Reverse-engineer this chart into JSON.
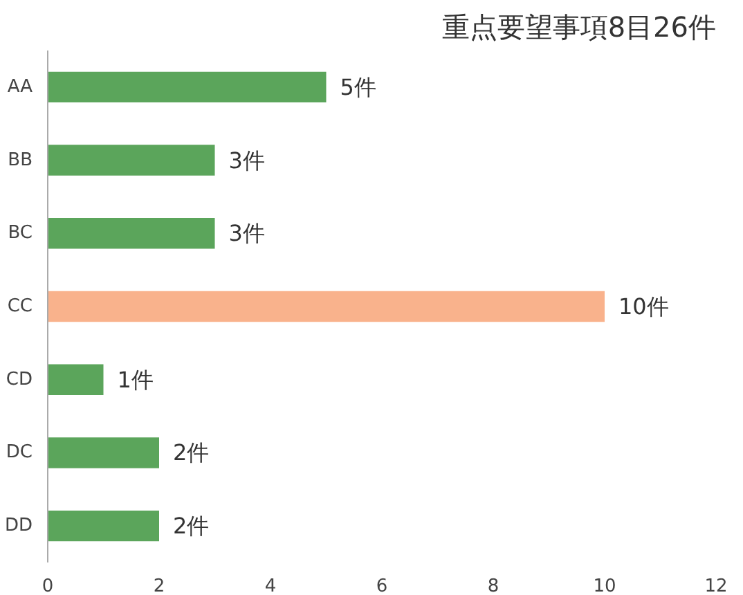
{
  "chart_data": {
    "type": "bar",
    "orientation": "horizontal",
    "title": "重点要望事項8目26件",
    "categories": [
      "AA",
      "BB",
      "BC",
      "CC",
      "CD",
      "DC",
      "DD"
    ],
    "values": [
      5,
      3,
      3,
      10,
      1,
      2,
      2
    ],
    "colors": [
      "#5ba55b",
      "#5ba55b",
      "#5ba55b",
      "#f9b28c",
      "#5ba55b",
      "#5ba55b",
      "#5ba55b"
    ],
    "value_labels": [
      "5件",
      "3件",
      "3件",
      "10件",
      "1件",
      "2件",
      "2件"
    ],
    "xlim": [
      0,
      12
    ],
    "xticks": [
      0,
      2,
      4,
      6,
      8,
      10,
      12
    ],
    "grid": false
  }
}
